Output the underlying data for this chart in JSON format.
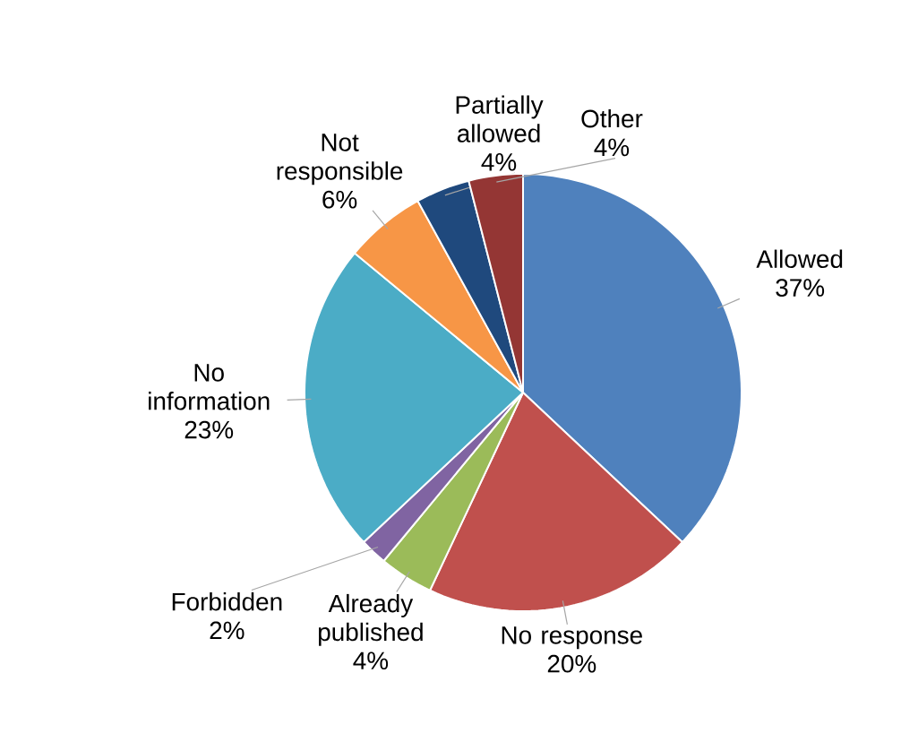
{
  "chart_data": {
    "type": "pie",
    "categories": [
      "Allowed",
      "No response",
      "Already published",
      "Forbidden",
      "No information",
      "Not responsible",
      "Partially allowed",
      "Other"
    ],
    "values": [
      37,
      20,
      4,
      2,
      23,
      6,
      4,
      4
    ],
    "value_labels": [
      "37%",
      "20%",
      "4%",
      "2%",
      "23%",
      "6%",
      "4%",
      "4%"
    ],
    "colors": [
      "#4f81bd",
      "#c0504d",
      "#9bbb59",
      "#8064a2",
      "#4bacc6",
      "#f79646",
      "#1f497d",
      "#943634"
    ]
  }
}
